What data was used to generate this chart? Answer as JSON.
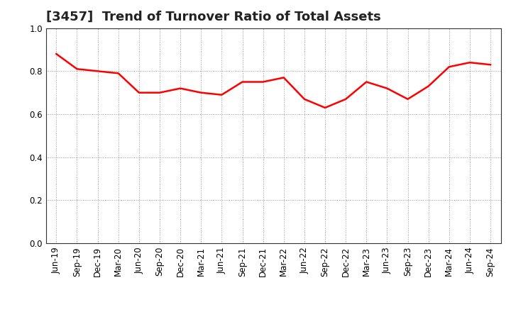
{
  "title": "[3457]  Trend of Turnover Ratio of Total Assets",
  "x_labels": [
    "Jun-19",
    "Sep-19",
    "Dec-19",
    "Mar-20",
    "Jun-20",
    "Sep-20",
    "Dec-20",
    "Mar-21",
    "Jun-21",
    "Sep-21",
    "Dec-21",
    "Mar-22",
    "Jun-22",
    "Sep-22",
    "Dec-22",
    "Mar-23",
    "Jun-23",
    "Sep-23",
    "Dec-23",
    "Mar-24",
    "Jun-24",
    "Sep-24"
  ],
  "values": [
    0.88,
    0.81,
    0.8,
    0.79,
    0.7,
    0.7,
    0.72,
    0.7,
    0.69,
    0.75,
    0.75,
    0.77,
    0.67,
    0.63,
    0.67,
    0.75,
    0.72,
    0.67,
    0.73,
    0.82,
    0.84,
    0.83
  ],
  "line_color": "#FF0000",
  "line_width": 1.8,
  "ylim": [
    0.0,
    1.0
  ],
  "yticks": [
    0.0,
    0.2,
    0.4,
    0.6,
    0.8,
    1.0
  ],
  "grid_color": "#999999",
  "background_color": "#ffffff",
  "title_fontsize": 13,
  "tick_fontsize": 8.5,
  "title_color": "#222222"
}
